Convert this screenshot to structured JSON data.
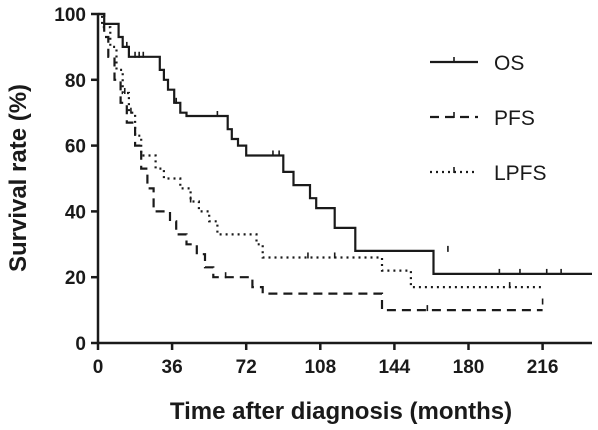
{
  "chart_data": {
    "type": "line",
    "step": true,
    "xlabel": "Time after diagnosis (months)",
    "ylabel": "Survival rate (%)",
    "xlim": [
      0,
      240
    ],
    "ylim": [
      0,
      100
    ],
    "xticks": [
      0,
      36,
      72,
      108,
      144,
      180,
      216
    ],
    "yticks": [
      0,
      20,
      40,
      60,
      80,
      100
    ],
    "legend_position": "top-right",
    "series": [
      {
        "name": "OS",
        "dash": "solid",
        "points": [
          [
            0,
            100
          ],
          [
            3,
            100
          ],
          [
            3,
            97
          ],
          [
            10,
            97
          ],
          [
            10,
            93
          ],
          [
            12,
            93
          ],
          [
            12,
            90
          ],
          [
            15,
            90
          ],
          [
            15,
            87
          ],
          [
            30,
            87
          ],
          [
            30,
            83
          ],
          [
            32,
            83
          ],
          [
            32,
            80
          ],
          [
            34,
            80
          ],
          [
            34,
            77
          ],
          [
            37,
            77
          ],
          [
            37,
            73
          ],
          [
            40,
            73
          ],
          [
            40,
            70
          ],
          [
            43,
            70
          ],
          [
            43,
            69
          ],
          [
            63,
            69
          ],
          [
            63,
            65
          ],
          [
            65,
            65
          ],
          [
            65,
            62
          ],
          [
            68,
            62
          ],
          [
            68,
            60
          ],
          [
            72,
            60
          ],
          [
            72,
            57
          ],
          [
            90,
            57
          ],
          [
            90,
            52
          ],
          [
            95,
            52
          ],
          [
            95,
            48
          ],
          [
            103,
            48
          ],
          [
            103,
            44
          ],
          [
            106,
            44
          ],
          [
            106,
            41
          ],
          [
            115,
            41
          ],
          [
            115,
            35
          ],
          [
            125,
            35
          ],
          [
            125,
            28
          ],
          [
            163,
            28
          ],
          [
            163,
            21
          ],
          [
            240,
            21
          ]
        ],
        "censored": [
          [
            14,
            90
          ],
          [
            18,
            87
          ],
          [
            20,
            87
          ],
          [
            22,
            87
          ],
          [
            38,
            73
          ],
          [
            58,
            69
          ],
          [
            85,
            57
          ],
          [
            88,
            57
          ],
          [
            170,
            28
          ],
          [
            195,
            21
          ],
          [
            205,
            21
          ],
          [
            218,
            21
          ],
          [
            225,
            21
          ]
        ]
      },
      {
        "name": "PFS",
        "dash": "dashed",
        "points": [
          [
            0,
            100
          ],
          [
            3,
            100
          ],
          [
            3,
            93
          ],
          [
            5,
            93
          ],
          [
            5,
            87
          ],
          [
            8,
            87
          ],
          [
            8,
            80
          ],
          [
            11,
            80
          ],
          [
            11,
            73
          ],
          [
            14,
            73
          ],
          [
            14,
            67
          ],
          [
            18,
            67
          ],
          [
            18,
            60
          ],
          [
            21,
            60
          ],
          [
            21,
            53
          ],
          [
            24,
            53
          ],
          [
            24,
            47
          ],
          [
            27,
            47
          ],
          [
            27,
            40
          ],
          [
            35,
            40
          ],
          [
            35,
            37
          ],
          [
            38,
            37
          ],
          [
            38,
            33
          ],
          [
            43,
            33
          ],
          [
            43,
            30
          ],
          [
            48,
            30
          ],
          [
            48,
            27
          ],
          [
            52,
            27
          ],
          [
            52,
            23
          ],
          [
            56,
            23
          ],
          [
            56,
            20
          ],
          [
            75,
            20
          ],
          [
            75,
            17
          ],
          [
            80,
            17
          ],
          [
            80,
            15
          ],
          [
            138,
            15
          ],
          [
            138,
            10
          ],
          [
            216,
            10
          ]
        ],
        "censored": [
          [
            62,
            20
          ],
          [
            160,
            10
          ],
          [
            216,
            12
          ]
        ]
      },
      {
        "name": "LPFS",
        "dash": "dotted",
        "points": [
          [
            0,
            100
          ],
          [
            2,
            100
          ],
          [
            2,
            96
          ],
          [
            6,
            96
          ],
          [
            6,
            90
          ],
          [
            9,
            90
          ],
          [
            9,
            83
          ],
          [
            12,
            83
          ],
          [
            12,
            76
          ],
          [
            15,
            76
          ],
          [
            15,
            70
          ],
          [
            18,
            70
          ],
          [
            18,
            63
          ],
          [
            21,
            63
          ],
          [
            21,
            57
          ],
          [
            28,
            57
          ],
          [
            28,
            53
          ],
          [
            32,
            53
          ],
          [
            32,
            50
          ],
          [
            40,
            50
          ],
          [
            40,
            47
          ],
          [
            45,
            47
          ],
          [
            45,
            43
          ],
          [
            49,
            43
          ],
          [
            49,
            40
          ],
          [
            54,
            40
          ],
          [
            54,
            37
          ],
          [
            58,
            37
          ],
          [
            58,
            33
          ],
          [
            77,
            33
          ],
          [
            77,
            30
          ],
          [
            80,
            30
          ],
          [
            80,
            26
          ],
          [
            138,
            26
          ],
          [
            138,
            22
          ],
          [
            152,
            22
          ],
          [
            152,
            17
          ],
          [
            216,
            17
          ]
        ],
        "censored": [
          [
            13,
            76
          ],
          [
            16,
            70
          ],
          [
            45,
            43
          ],
          [
            102,
            26
          ],
          [
            115,
            26
          ],
          [
            200,
            17
          ]
        ]
      }
    ]
  }
}
